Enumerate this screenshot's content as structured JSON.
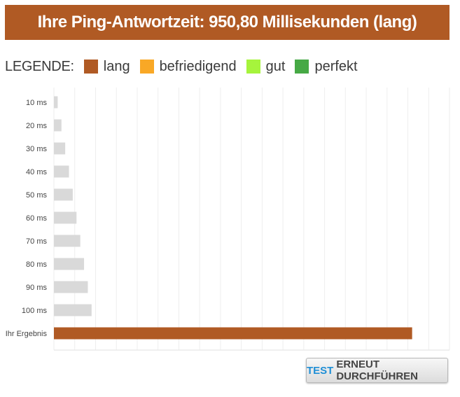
{
  "header": {
    "title": "Ihre Ping-Antwortzeit: 950,80 Millisekunden (lang)"
  },
  "legend": {
    "title": "LEGENDE:",
    "items": [
      {
        "label": "lang",
        "color": "#b05a24"
      },
      {
        "label": "befriedigend",
        "color": "#f9a826"
      },
      {
        "label": "gut",
        "color": "#a6f43c"
      },
      {
        "label": "perfekt",
        "color": "#46a945"
      }
    ]
  },
  "colors": {
    "reference_bar": "#d9d9d9",
    "result_bar": "#b05a24",
    "grid": "#eeeeee"
  },
  "chart_data": {
    "type": "bar",
    "orientation": "horizontal",
    "title": "Ihre Ping-Antwortzeit: 950,80 Millisekunden (lang)",
    "categories": [
      "10 ms",
      "20 ms",
      "30 ms",
      "40 ms",
      "50 ms",
      "60 ms",
      "70 ms",
      "80 ms",
      "90 ms",
      "100 ms",
      "Ihr Ergebnis"
    ],
    "values": [
      10,
      20,
      30,
      40,
      50,
      60,
      70,
      80,
      90,
      100,
      950.8
    ],
    "xlim": [
      0,
      1050
    ],
    "grid": true,
    "legend_position": "top"
  },
  "button": {
    "accent_label": "TEST",
    "label": "ERNEUT DURCHFÜHREN"
  }
}
